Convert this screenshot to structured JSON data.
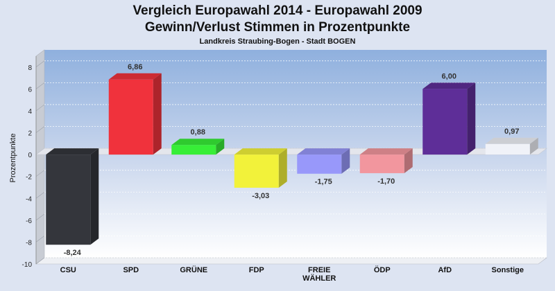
{
  "chart_data": {
    "type": "bar",
    "title": "Vergleich Europawahl 2014 - Europawahl 2009",
    "subtitle": "Gewinn/Verlust Stimmen in Prozentpunkte",
    "subtitle2": "Landkreis Straubing-Bogen - Stadt BOGEN",
    "ylabel": "Prozentpunkte",
    "xlabel": "",
    "ylim": [
      -10,
      9
    ],
    "yticks": [
      8,
      6,
      4,
      2,
      0,
      -2,
      -4,
      -6,
      -8,
      -10
    ],
    "grid": true,
    "categories": [
      "CSU",
      "SPD",
      "GRÜNE",
      "FDP",
      "FREIE WÄHLER",
      "ÖDP",
      "AfD",
      "Sonstige"
    ],
    "category_lines": [
      [
        "CSU"
      ],
      [
        "SPD"
      ],
      [
        "GRÜNE"
      ],
      [
        "FDP"
      ],
      [
        "FREIE",
        "WÄHLER"
      ],
      [
        "ÖDP"
      ],
      [
        "AfD"
      ],
      [
        "Sonstige"
      ]
    ],
    "values": [
      -8.24,
      6.86,
      0.88,
      -3.03,
      -1.75,
      -1.7,
      6.0,
      0.97
    ],
    "value_labels": [
      "-8,24",
      "6,86",
      "0,88",
      "-3,03",
      "-1,75",
      "-1,70",
      "6,00",
      "0,97"
    ],
    "colors": [
      "#34363c",
      "#f0323c",
      "#37ee37",
      "#f2f23a",
      "#9898fa",
      "#f2969e",
      "#5e2e98",
      "#f0f2f8"
    ]
  }
}
